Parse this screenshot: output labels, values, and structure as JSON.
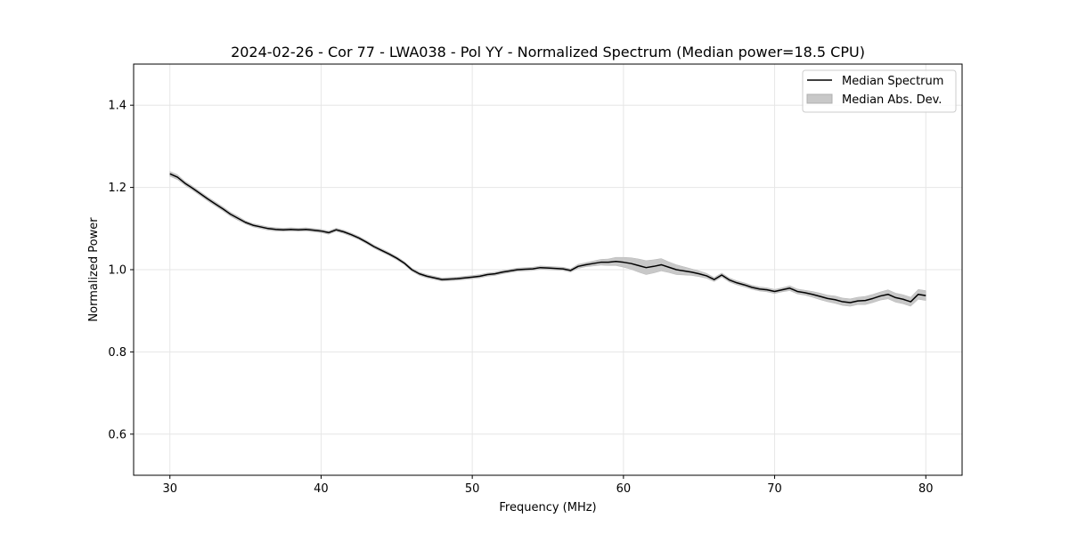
{
  "chart_data": {
    "type": "line",
    "title": "2024-02-26 - Cor 77 - LWA038 - Pol YY - Normalized Spectrum (Median power=18.5 CPU)",
    "xlabel": "Frequency (MHz)",
    "ylabel": "Normalized Power",
    "xlim": [
      27.6,
      82.4
    ],
    "ylim": [
      0.5,
      1.5
    ],
    "xticks": [
      30,
      40,
      50,
      60,
      70,
      80
    ],
    "yticks": [
      0.6,
      0.8,
      1.0,
      1.2,
      1.4
    ],
    "xtick_labels": [
      "30",
      "40",
      "50",
      "60",
      "70",
      "80"
    ],
    "ytick_labels": [
      "0.6",
      "0.8",
      "1.0",
      "1.2",
      "1.4"
    ],
    "grid": true,
    "legend_position": "top-right",
    "series": [
      {
        "name": "Median Spectrum",
        "color": "#000000",
        "x": [
          30,
          30.5,
          31,
          31.5,
          32,
          32.5,
          33,
          33.5,
          34,
          34.5,
          35,
          35.5,
          36,
          36.5,
          37,
          37.5,
          38,
          38.5,
          39,
          39.5,
          40,
          40.5,
          41,
          41.5,
          42,
          42.5,
          43,
          43.5,
          44,
          44.5,
          45,
          45.5,
          46,
          46.5,
          47,
          47.5,
          48,
          48.5,
          49,
          49.5,
          50,
          50.5,
          51,
          51.5,
          52,
          52.5,
          53,
          53.5,
          54,
          54.5,
          55,
          55.5,
          56,
          56.5,
          57,
          57.5,
          58,
          58.5,
          59,
          59.5,
          60,
          60.5,
          61,
          61.5,
          62,
          62.5,
          63,
          63.5,
          64,
          64.5,
          65,
          65.5,
          66,
          66.5,
          67,
          67.5,
          68,
          68.5,
          69,
          69.5,
          70,
          70.5,
          71,
          71.5,
          72,
          72.5,
          73,
          73.5,
          74,
          74.5,
          75,
          75.5,
          76,
          76.5,
          77,
          77.5,
          78,
          78.5,
          79,
          79.5,
          80
        ],
        "values": [
          1.233,
          1.225,
          1.21,
          1.198,
          1.185,
          1.172,
          1.16,
          1.148,
          1.135,
          1.125,
          1.115,
          1.108,
          1.104,
          1.1,
          1.098,
          1.097,
          1.098,
          1.097,
          1.098,
          1.096,
          1.094,
          1.09,
          1.097,
          1.092,
          1.085,
          1.077,
          1.067,
          1.056,
          1.047,
          1.038,
          1.028,
          1.016,
          1.0,
          0.99,
          0.984,
          0.98,
          0.976,
          0.977,
          0.978,
          0.98,
          0.982,
          0.984,
          0.988,
          0.99,
          0.994,
          0.997,
          1.0,
          1.001,
          1.002,
          1.005,
          1.004,
          1.003,
          1.002,
          0.998,
          1.008,
          1.012,
          1.015,
          1.018,
          1.018,
          1.02,
          1.018,
          1.015,
          1.01,
          1.005,
          1.008,
          1.012,
          1.006,
          1.0,
          0.997,
          0.994,
          0.99,
          0.985,
          0.976,
          0.987,
          0.975,
          0.968,
          0.963,
          0.957,
          0.953,
          0.951,
          0.947,
          0.951,
          0.955,
          0.947,
          0.944,
          0.94,
          0.935,
          0.93,
          0.927,
          0.922,
          0.92,
          0.924,
          0.925,
          0.93,
          0.936,
          0.94,
          0.932,
          0.928,
          0.922,
          0.94,
          0.937
        ]
      },
      {
        "name": "Median Abs. Dev.",
        "color": "#c8c8c8",
        "x": [
          30,
          30.5,
          31,
          31.5,
          32,
          32.5,
          33,
          33.5,
          34,
          34.5,
          35,
          35.5,
          36,
          36.5,
          37,
          37.5,
          38,
          38.5,
          39,
          39.5,
          40,
          40.5,
          41,
          41.5,
          42,
          42.5,
          43,
          43.5,
          44,
          44.5,
          45,
          45.5,
          46,
          46.5,
          47,
          47.5,
          48,
          48.5,
          49,
          49.5,
          50,
          50.5,
          51,
          51.5,
          52,
          52.5,
          53,
          53.5,
          54,
          54.5,
          55,
          55.5,
          56,
          56.5,
          57,
          57.5,
          58,
          58.5,
          59,
          59.5,
          60,
          60.5,
          61,
          61.5,
          62,
          62.5,
          63,
          63.5,
          64,
          64.5,
          65,
          65.5,
          66,
          66.5,
          67,
          67.5,
          68,
          68.5,
          69,
          69.5,
          70,
          70.5,
          71,
          71.5,
          72,
          72.5,
          73,
          73.5,
          74,
          74.5,
          75,
          75.5,
          76,
          76.5,
          77,
          77.5,
          78,
          78.5,
          79,
          79.5,
          80
        ],
        "values": [
          0.006,
          0.006,
          0.005,
          0.005,
          0.005,
          0.005,
          0.005,
          0.005,
          0.005,
          0.005,
          0.004,
          0.004,
          0.004,
          0.004,
          0.004,
          0.004,
          0.004,
          0.004,
          0.004,
          0.004,
          0.004,
          0.004,
          0.004,
          0.004,
          0.004,
          0.004,
          0.004,
          0.004,
          0.004,
          0.004,
          0.004,
          0.004,
          0.004,
          0.004,
          0.004,
          0.004,
          0.004,
          0.004,
          0.004,
          0.004,
          0.004,
          0.004,
          0.004,
          0.004,
          0.004,
          0.004,
          0.004,
          0.004,
          0.004,
          0.004,
          0.004,
          0.004,
          0.004,
          0.004,
          0.005,
          0.005,
          0.006,
          0.007,
          0.008,
          0.01,
          0.012,
          0.014,
          0.016,
          0.017,
          0.016,
          0.015,
          0.013,
          0.012,
          0.01,
          0.008,
          0.007,
          0.006,
          0.005,
          0.005,
          0.005,
          0.005,
          0.005,
          0.005,
          0.005,
          0.005,
          0.005,
          0.005,
          0.006,
          0.006,
          0.006,
          0.007,
          0.008,
          0.008,
          0.009,
          0.009,
          0.009,
          0.009,
          0.01,
          0.01,
          0.01,
          0.011,
          0.011,
          0.011,
          0.011,
          0.012,
          0.012
        ]
      }
    ]
  }
}
